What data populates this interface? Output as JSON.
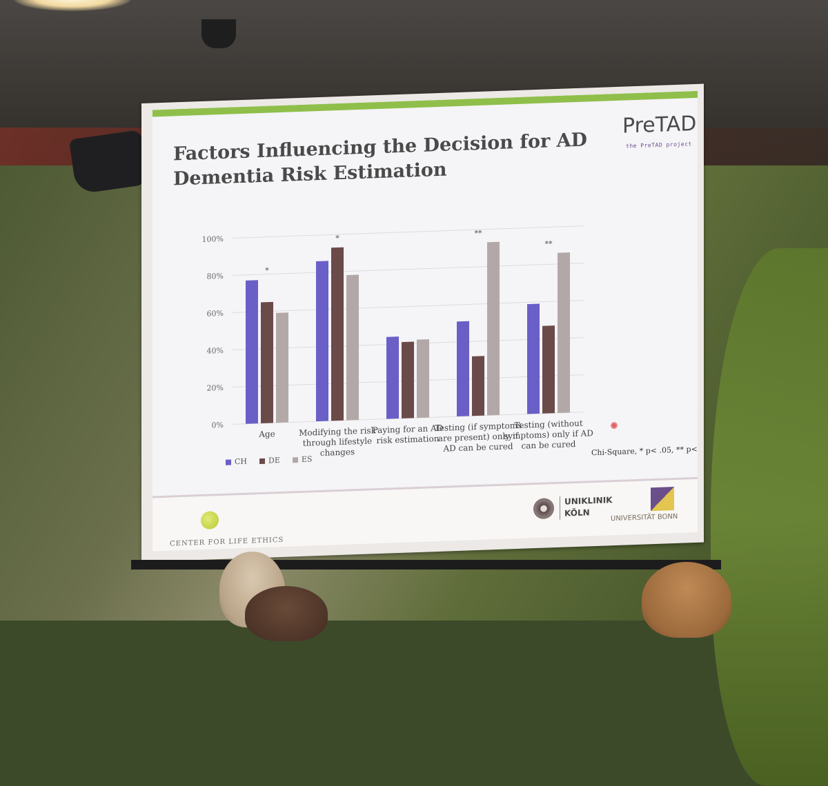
{
  "slide": {
    "title": "Factors Influencing the Decision for AD Dementia Risk Estimation",
    "footnote": "Chi-Square, * p< .05, ** p< .001"
  },
  "logos": {
    "pretad_brand": "PreTAD",
    "pretad_tag": "the PreTAD project",
    "center_for_life_ethics": "CENTER FOR LIFE ETHICS",
    "uniklinik_line1": "UNIKLINIK",
    "uniklinik_line2": "KÖLN",
    "universitaet_bonn": "UNIVERSITÄT BONN"
  },
  "chart_data": {
    "type": "bar",
    "categories": [
      "Age",
      "Modifying the risk through lifestyle changes",
      "Paying for an AD risk estimation",
      "Testing (if symptoms are present) only if AD can be cured",
      "Testing (without symptoms) only if AD can be cured"
    ],
    "significance": [
      "*",
      "*",
      "",
      "**",
      "**"
    ],
    "series": [
      {
        "name": "CH",
        "color": "#6a5fc7",
        "values": [
          77,
          86,
          44,
          51,
          59
        ]
      },
      {
        "name": "DE",
        "color": "#6b4a4a",
        "values": [
          65,
          93,
          41,
          32,
          47
        ]
      },
      {
        "name": "ES",
        "color": "#b3a8a8",
        "values": [
          59,
          78,
          42,
          93,
          86
        ]
      }
    ],
    "y_ticks": [
      "0%",
      "20%",
      "40%",
      "60%",
      "80%",
      "100%"
    ],
    "ylim": [
      0,
      100
    ],
    "grid": true,
    "legend_position": "bottom-left"
  }
}
